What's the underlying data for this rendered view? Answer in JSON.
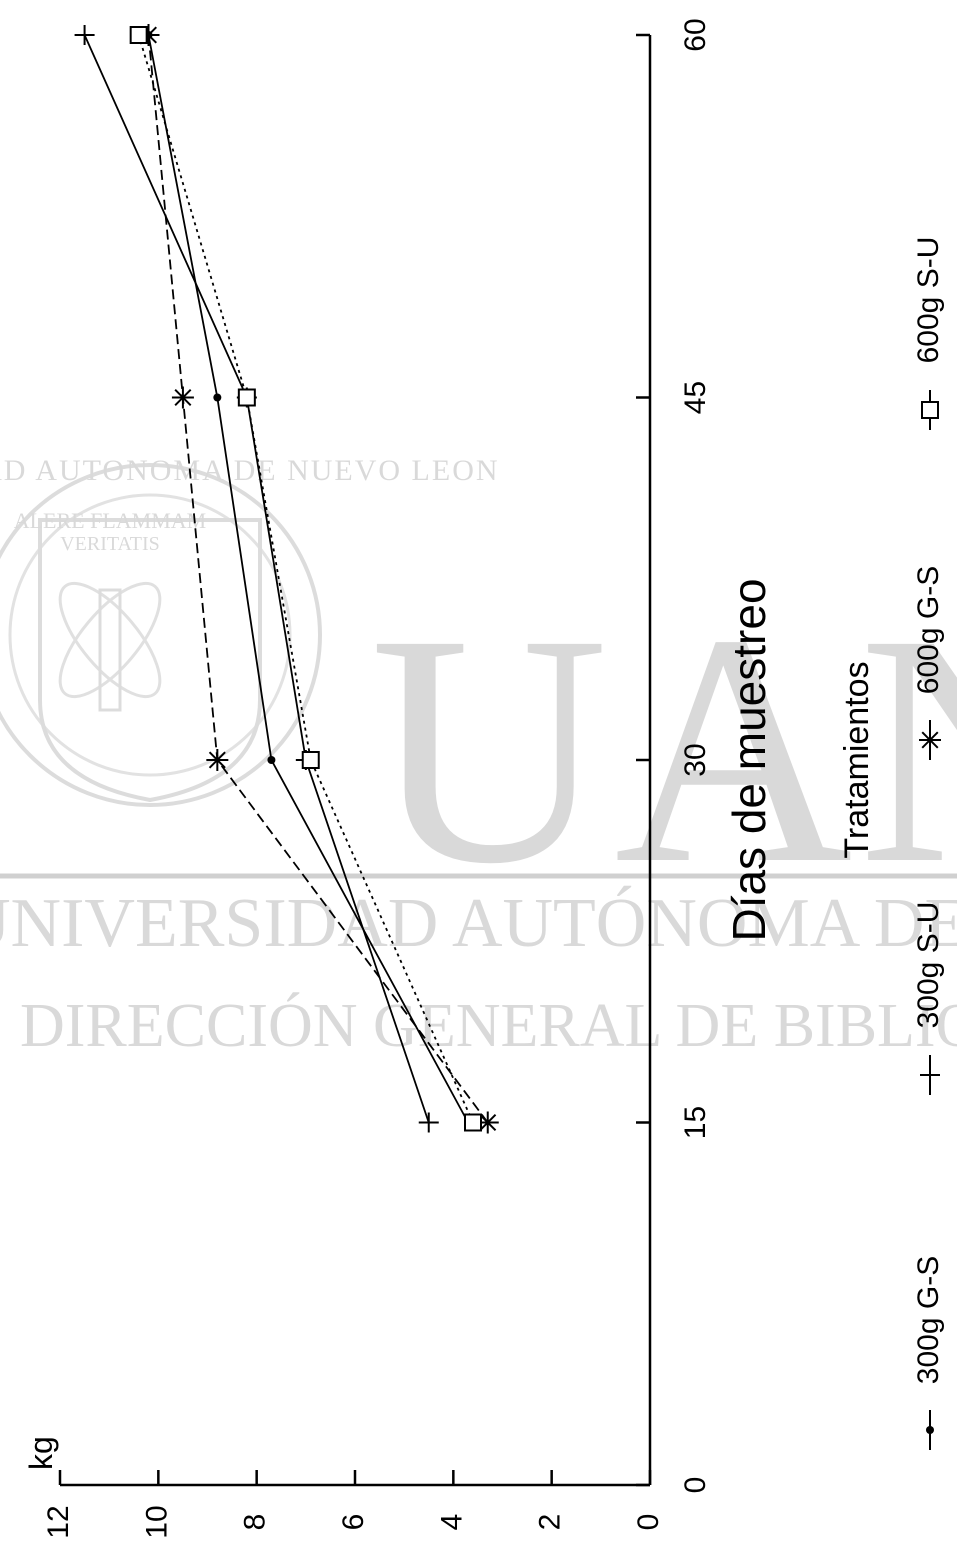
{
  "watermark": {
    "seal_text_top": "UNIVERSIDAD AUTONOMA DE NUEVO LEON",
    "seal_motto_1": "ALERE FLAMMAM",
    "seal_motto_2": "VERITATIS",
    "big_letters": "UANL",
    "line1": "UNIVERSIDAD AUTÓNOMA DE NUEVO LEÓN",
    "line2": "DIRECCIÓN GENERAL DE BIBLIOTECAS"
  },
  "chart_data": {
    "type": "line",
    "title": "",
    "xlabel": "Días de muestreo",
    "ylabel": "kg",
    "xlim": [
      0,
      60
    ],
    "ylim": [
      0,
      12
    ],
    "x_ticks": [
      0,
      15,
      30,
      45,
      60
    ],
    "y_ticks": [
      0,
      2,
      4,
      6,
      8,
      10,
      12
    ],
    "orientation": "rotated 90 degrees (x axis runs vertically)",
    "grid": false,
    "legend_title": "Tratamientos",
    "legend_position": "bottom",
    "x": [
      15,
      30,
      45,
      60
    ],
    "series": [
      {
        "name": "300g G-S",
        "marker": "dot",
        "values": [
          3.7,
          7.7,
          8.8,
          10.2
        ]
      },
      {
        "name": "300g S-U",
        "marker": "plus",
        "values": [
          4.5,
          7.0,
          8.2,
          11.5
        ]
      },
      {
        "name": "600g G-S",
        "marker": "star",
        "values": [
          3.3,
          8.8,
          9.5,
          10.2
        ]
      },
      {
        "name": "600g S-U",
        "marker": "square",
        "values": [
          3.6,
          6.9,
          8.2,
          10.4
        ]
      }
    ]
  }
}
